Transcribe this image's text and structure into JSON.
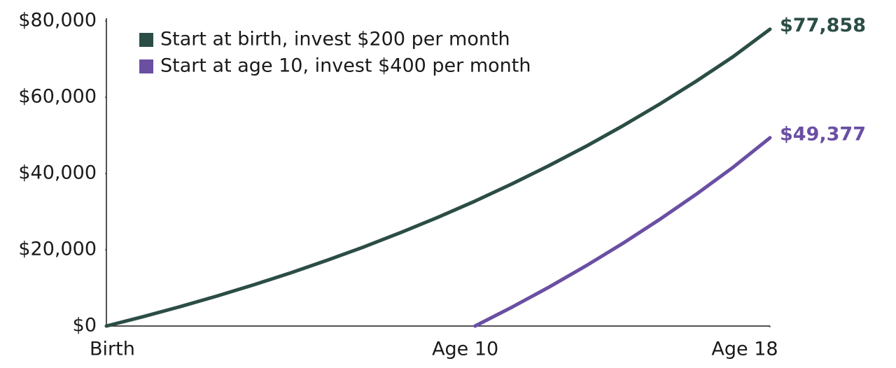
{
  "chart_data": {
    "type": "line",
    "x": [
      0,
      1,
      2,
      3,
      4,
      5,
      6,
      7,
      8,
      9,
      10,
      11,
      12,
      13,
      14,
      15,
      16,
      17,
      18
    ],
    "series": [
      {
        "name": "Start at birth, invest $200 per month",
        "color": "#2b4d46",
        "values": [
          0,
          2467,
          5086,
          7867,
          10820,
          13954,
          17282,
          20815,
          24566,
          28548,
          32776,
          37264,
          42030,
          47090,
          52461,
          58164,
          64218,
          70646,
          77858
        ],
        "value_labels": [
          null,
          null,
          null,
          null,
          null,
          null,
          null,
          null,
          null,
          null,
          null,
          null,
          null,
          null,
          null,
          null,
          null,
          null,
          "$77,858"
        ]
      },
      {
        "name": "Start at age 10, invest $400 per month",
        "color": "#6a4fa3",
        "values": [
          null,
          null,
          null,
          null,
          null,
          null,
          null,
          null,
          null,
          null,
          0,
          4934,
          10173,
          15734,
          21639,
          27908,
          34563,
          41630,
          49377
        ],
        "value_labels": [
          null,
          null,
          null,
          null,
          null,
          null,
          null,
          null,
          null,
          null,
          null,
          null,
          null,
          null,
          null,
          null,
          null,
          null,
          "$49,377"
        ]
      }
    ],
    "xlim": [
      0,
      18
    ],
    "xticks": [
      {
        "value": 0,
        "label": "Birth"
      },
      {
        "value": 10,
        "label": "Age 10"
      },
      {
        "value": 18,
        "label": "Age 18"
      }
    ],
    "ylim": [
      0,
      80000
    ],
    "yticks": [
      {
        "value": 0,
        "label": "$0"
      },
      {
        "value": 20000,
        "label": "$20,000"
      },
      {
        "value": 40000,
        "label": "$40,000"
      },
      {
        "value": 60000,
        "label": "$60,000"
      },
      {
        "value": 80000,
        "label": "$80,000"
      }
    ],
    "grid": false
  }
}
